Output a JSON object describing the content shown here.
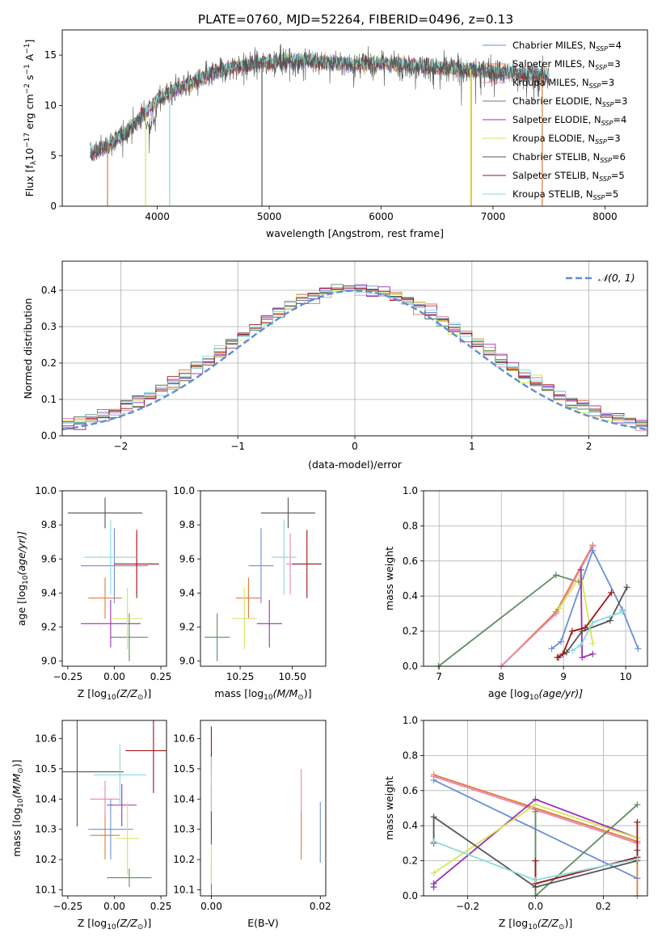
{
  "figure": {
    "title": "PLATE=0760, MJD=52264, FIBERID=0496, z=0.13"
  },
  "colors": {
    "cm": "#6a8fd8",
    "sm": "#e07b39",
    "km": "#e986b0",
    "ce": "#5e8c63",
    "se": "#9b30b5",
    "ke": "#d6e654",
    "cs": "#555555",
    "ss": "#a01416",
    "ks": "#89dadb",
    "normal": "#5b8fd6"
  },
  "chart_data": [
    {
      "id": "spectrum",
      "type": "line",
      "xlabel": "wavelength [Angstrom, rest frame]",
      "ylabel_main": "Flux [f",
      "ylabel_sub": "λ",
      "ylabel_rest": "10",
      "ylabel_exp1": "−17",
      "ylabel_mid": " erg cm",
      "ylabel_exp2": "−2",
      "ylabel_s": " s",
      "ylabel_exp3": "−1",
      "ylabel_end": " A",
      "ylabel_exp4": "−1",
      "ylabel_close": "]",
      "xlim": [
        3150,
        8380
      ],
      "ylim": [
        0,
        17.5
      ],
      "xticks": [
        4000,
        5000,
        6000,
        7000,
        8000
      ],
      "yticks": [
        0,
        5,
        10,
        15
      ],
      "continuum": [
        [
          3400,
          5.2
        ],
        [
          3550,
          6.0
        ],
        [
          3700,
          7.2
        ],
        [
          3850,
          8.8
        ],
        [
          4000,
          10.6
        ],
        [
          4150,
          11.6
        ],
        [
          4300,
          12.2
        ],
        [
          4500,
          13.2
        ],
        [
          4700,
          13.9
        ],
        [
          4900,
          14.2
        ],
        [
          5100,
          14.4
        ],
        [
          5300,
          14.5
        ],
        [
          5500,
          14.3
        ],
        [
          5800,
          14.1
        ],
        [
          6000,
          14.2
        ],
        [
          6300,
          14.0
        ],
        [
          6600,
          13.7
        ],
        [
          6900,
          13.5
        ],
        [
          7100,
          13.3
        ],
        [
          7300,
          13.1
        ],
        [
          7500,
          13.0
        ]
      ],
      "series": [
        {
          "key": "cm",
          "legend": "Chabrier MILES, N",
          "legend_sub": "SSP",
          "legend_val": "=4"
        },
        {
          "key": "sm",
          "legend": "Salpeter MILES, N",
          "legend_sub": "SSP",
          "legend_val": "=3"
        },
        {
          "key": "km",
          "legend": "Kroupa MILES, N",
          "legend_sub": "SSP",
          "legend_val": "=3"
        },
        {
          "key": "ce",
          "legend": "Chabrier ELODIE, N",
          "legend_sub": "SSP",
          "legend_val": "=3"
        },
        {
          "key": "se",
          "legend": "Salpeter ELODIE, N",
          "legend_sub": "SSP",
          "legend_val": "=4"
        },
        {
          "key": "ke",
          "legend": "Kroupa ELODIE, N",
          "legend_sub": "SSP",
          "legend_val": "=3"
        },
        {
          "key": "cs",
          "legend": "Chabrier STELIB, N",
          "legend_sub": "SSP",
          "legend_val": "=6"
        },
        {
          "key": "ss",
          "legend": "Salpeter STELIB, N",
          "legend_sub": "SSP",
          "legend_val": "=5"
        },
        {
          "key": "ks",
          "legend": "Kroupa STELIB, N",
          "legend_sub": "SSP",
          "legend_val": "=5"
        }
      ],
      "spikes": [
        {
          "key": "sm",
          "x": 3555,
          "y": 0
        },
        {
          "key": "ke",
          "x": 3895,
          "y": 0
        },
        {
          "key": "ks",
          "x": 4110,
          "y": 0
        },
        {
          "key": "cs",
          "x": 4935,
          "y": 0
        },
        {
          "key": "sm",
          "x": 6805,
          "y": 0
        },
        {
          "key": "ke",
          "x": 6800,
          "y": 0
        },
        {
          "key": "sm",
          "x": 7440,
          "y": 0
        }
      ]
    },
    {
      "id": "residuals",
      "type": "histogram",
      "xlabel": "(data-model)/error",
      "ylabel": "Normed distribution",
      "xlim": [
        -2.5,
        2.5
      ],
      "ylim": [
        0,
        0.48
      ],
      "xticks": [
        -2,
        -1,
        0,
        1,
        2
      ],
      "yticks": [
        0.0,
        0.1,
        0.2,
        0.3,
        0.4
      ],
      "xtick_labels": [
        "−2",
        "−1",
        "0",
        "1",
        "2"
      ],
      "legend": "𝒩(0, 1)",
      "bin_width": 0.1
    },
    {
      "id": "age_vs_Z",
      "type": "scatter",
      "xlabel": "Z [log",
      "xlabel_sub": "10",
      "xlabel_rest": "(Z/Z",
      "xlabel_sub2": "⊙",
      "xlabel_close": ")]",
      "ylabel": "age  [log",
      "ylabel_sub": "10",
      "ylabel_rest": "(age/yr)]",
      "xlim": [
        -0.28,
        0.28
      ],
      "ylim": [
        8.97,
        10.0
      ],
      "xticks": [
        -0.25,
        0.0,
        0.25
      ],
      "xtick_labels": [
        "−0.25",
        "0.00",
        "0.25"
      ],
      "yticks": [
        9.0,
        9.2,
        9.4,
        9.6,
        9.8,
        10.0
      ],
      "points": [
        {
          "key": "cm",
          "x": 0.0,
          "xerr": 0.18,
          "y": 9.56,
          "yerr": 0.22
        },
        {
          "key": "sm",
          "x": -0.05,
          "xerr": 0.09,
          "y": 9.37,
          "yerr": 0.12
        },
        {
          "key": "km",
          "x": 0.12,
          "xerr": 0.02,
          "y": 9.57,
          "yerr": 0.18
        },
        {
          "key": "ce",
          "x": 0.08,
          "xerr": 0.1,
          "y": 9.14,
          "yerr": 0.14
        },
        {
          "key": "se",
          "x": -0.02,
          "xerr": 0.16,
          "y": 9.22,
          "yerr": 0.14
        },
        {
          "key": "ke",
          "x": 0.07,
          "xerr": 0.08,
          "y": 9.25,
          "yerr": 0.18
        },
        {
          "key": "cs",
          "x": -0.05,
          "xerr": 0.2,
          "y": 9.87,
          "yerr": 0.09
        },
        {
          "key": "ss",
          "x": 0.12,
          "xerr": 0.12,
          "y": 9.57,
          "yerr": 0.2
        },
        {
          "key": "ks",
          "x": -0.02,
          "xerr": 0.14,
          "y": 9.61,
          "yerr": 0.22
        }
      ]
    },
    {
      "id": "age_vs_mass",
      "type": "scatter",
      "xlabel": "mass [log",
      "xlabel_sub": "10",
      "xlabel_rest": "(M/M",
      "xlabel_sub2": "⊙",
      "xlabel_close": ")]",
      "xlim": [
        10.06,
        10.66
      ],
      "ylim": [
        8.97,
        10.0
      ],
      "xticks": [
        10.25,
        10.5
      ],
      "xtick_labels": [
        "10.25",
        "10.50"
      ],
      "yticks": [
        9.0,
        9.2,
        9.4,
        9.6,
        9.8,
        10.0
      ],
      "points": [
        {
          "key": "cm",
          "x": 10.35,
          "xerr": 0.06,
          "y": 9.56,
          "yerr": 0.22
        },
        {
          "key": "sm",
          "x": 10.29,
          "xerr": 0.06,
          "y": 9.37,
          "yerr": 0.12
        },
        {
          "key": "km",
          "x": 10.49,
          "xerr": 0.02,
          "y": 9.57,
          "yerr": 0.18
        },
        {
          "key": "ce",
          "x": 10.14,
          "xerr": 0.06,
          "y": 9.14,
          "yerr": 0.14
        },
        {
          "key": "se",
          "x": 10.39,
          "xerr": 0.06,
          "y": 9.22,
          "yerr": 0.14
        },
        {
          "key": "ke",
          "x": 10.27,
          "xerr": 0.06,
          "y": 9.25,
          "yerr": 0.18
        },
        {
          "key": "cs",
          "x": 10.48,
          "xerr": 0.13,
          "y": 9.87,
          "yerr": 0.09
        },
        {
          "key": "ss",
          "x": 10.57,
          "xerr": 0.07,
          "y": 9.57,
          "yerr": 0.2
        },
        {
          "key": "ks",
          "x": 10.46,
          "xerr": 0.06,
          "y": 9.61,
          "yerr": 0.22
        }
      ]
    },
    {
      "id": "weight_vs_age",
      "type": "line",
      "xlabel": "age  [log",
      "xlabel_sub": "10",
      "xlabel_rest": "(age/yr)]",
      "ylabel": "mass weight",
      "xlim": [
        6.75,
        10.35
      ],
      "ylim": [
        0,
        1.0
      ],
      "xticks": [
        7,
        8,
        9,
        10
      ],
      "yticks": [
        0.0,
        0.2,
        0.4,
        0.6,
        0.8,
        1.0
      ],
      "series": [
        {
          "key": "ce",
          "x": [
            6.99,
            8.88,
            9.25
          ],
          "y": [
            0.0,
            0.52,
            0.48
          ]
        },
        {
          "key": "sm",
          "x": [
            8.0,
            8.88,
            9.47
          ],
          "y": [
            0.0,
            0.31,
            0.69
          ]
        },
        {
          "key": "km",
          "x": [
            8.0,
            8.88,
            9.47
          ],
          "y": [
            0.0,
            0.3,
            0.68
          ]
        },
        {
          "key": "cm",
          "x": [
            8.81,
            8.96,
            9.47,
            9.95,
            10.2
          ],
          "y": [
            0.1,
            0.14,
            0.66,
            0.32,
            0.1
          ]
        },
        {
          "key": "ke",
          "x": [
            8.93,
            9.28,
            9.47
          ],
          "y": [
            0.33,
            0.52,
            0.13
          ]
        },
        {
          "key": "se",
          "x": [
            9.28,
            9.3,
            9.47
          ],
          "y": [
            0.55,
            0.05,
            0.07
          ]
        },
        {
          "key": "cs",
          "x": [
            8.9,
            9.05,
            9.3,
            9.75,
            10.02
          ],
          "y": [
            0.05,
            0.08,
            0.2,
            0.26,
            0.45
          ]
        },
        {
          "key": "ss",
          "x": [
            8.92,
            8.99,
            9.14,
            9.35,
            9.77
          ],
          "y": [
            0.05,
            0.07,
            0.2,
            0.22,
            0.42
          ]
        },
        {
          "key": "ks",
          "x": [
            9.14,
            9.28,
            9.47,
            9.95
          ],
          "y": [
            0.09,
            0.12,
            0.25,
            0.31
          ]
        }
      ]
    },
    {
      "id": "mass_vs_Z",
      "type": "scatter",
      "xlabel": "Z [log",
      "xlabel_sub": "10",
      "xlabel_rest": "(Z/Z",
      "xlabel_sub2": "⊙",
      "xlabel_close": ")]",
      "ylabel": "mass [log",
      "ylabel_sub": "10",
      "ylabel_rest": "(M/M",
      "ylabel_sub2": "⊙",
      "ylabel_close": ")]",
      "xlim": [
        -0.28,
        0.28
      ],
      "ylim": [
        10.08,
        10.66
      ],
      "xticks": [
        -0.25,
        0.0,
        0.25
      ],
      "xtick_labels": [
        "−0.25",
        "0.00",
        "0.25"
      ],
      "yticks": [
        10.1,
        10.2,
        10.3,
        10.4,
        10.5,
        10.6
      ],
      "points": [
        {
          "key": "cm",
          "x": -0.02,
          "xerr": 0.12,
          "y": 10.3,
          "yerr": 0.1
        },
        {
          "key": "sm",
          "x": -0.05,
          "xerr": 0.08,
          "y": 10.28,
          "yerr": 0.08
        },
        {
          "key": "km",
          "x": -0.05,
          "xerr": 0.08,
          "y": 10.4,
          "yerr": 0.06
        },
        {
          "key": "ce",
          "x": 0.08,
          "xerr": 0.12,
          "y": 10.14,
          "yerr": 0.03
        },
        {
          "key": "se",
          "x": 0.04,
          "xerr": 0.08,
          "y": 10.38,
          "yerr": 0.07
        },
        {
          "key": "ke",
          "x": 0.07,
          "xerr": 0.06,
          "y": 10.27,
          "yerr": 0.12
        },
        {
          "key": "cs",
          "x": -0.2,
          "xerr": 0.25,
          "y": 10.49,
          "yerr": 0.18
        },
        {
          "key": "ss",
          "x": 0.21,
          "xerr": 0.15,
          "y": 10.56,
          "yerr": 0.14
        },
        {
          "key": "ks",
          "x": 0.03,
          "xerr": 0.14,
          "y": 10.48,
          "yerr": 0.1
        }
      ]
    },
    {
      "id": "mass_vs_ebv",
      "type": "scatter",
      "xlabel": "E(B-V)",
      "xlim": [
        -0.002,
        0.021
      ],
      "ylim": [
        10.08,
        10.66
      ],
      "xticks": [
        0.0,
        0.02
      ],
      "xtick_labels": [
        "0.00",
        "0.02"
      ],
      "yticks": [
        10.1,
        10.2,
        10.3,
        10.4,
        10.5,
        10.6
      ],
      "points": [
        {
          "key": "cm",
          "x": 0.02,
          "xerr": 0,
          "y": 10.29,
          "yerr": 0.1
        },
        {
          "key": "sm",
          "x": 0.0165,
          "xerr": 0,
          "y": 10.28,
          "yerr": 0.08
        },
        {
          "key": "km",
          "x": 0.0165,
          "xerr": 0,
          "y": 10.43,
          "yerr": 0.07
        },
        {
          "key": "ce",
          "x": 0.0,
          "xerr": 0,
          "y": 10.14,
          "yerr": 0.06
        },
        {
          "key": "se",
          "x": 0.0,
          "xerr": 0,
          "y": 10.38,
          "yerr": 0.06
        },
        {
          "key": "ke",
          "x": 0.0,
          "xerr": 0,
          "y": 10.24,
          "yerr": 0.12
        },
        {
          "key": "cs",
          "x": 0.0,
          "xerr": 0,
          "y": 10.4,
          "yerr": 0.15
        },
        {
          "key": "ss",
          "x": 0.0,
          "xerr": 0,
          "y": 10.56,
          "yerr": 0.08
        },
        {
          "key": "ks",
          "x": 0.0,
          "xerr": 0,
          "y": 10.45,
          "yerr": 0.09
        }
      ]
    },
    {
      "id": "weight_vs_Z",
      "type": "line",
      "xlabel": "Z [log",
      "xlabel_sub": "10",
      "xlabel_rest": "(Z/Z",
      "xlabel_sub2": "⊙",
      "xlabel_close": ")]",
      "ylabel": "mass weight",
      "xlim": [
        -0.33,
        0.33
      ],
      "ylim": [
        0,
        1.0
      ],
      "xticks": [
        -0.2,
        0.0,
        0.2
      ],
      "xtick_labels": [
        "−0.2",
        "0.0",
        "0.2"
      ],
      "yticks": [
        0.0,
        0.2,
        0.4,
        0.6,
        0.8,
        1.0
      ],
      "series": [
        {
          "key": "cm",
          "x": [
            -0.3,
            0.3,
            0.3
          ],
          "y": [
            0.66,
            0.1,
            0.1
          ]
        },
        {
          "key": "sm",
          "x": [
            -0.3,
            0.3,
            0.3
          ],
          "y": [
            0.69,
            0.31,
            0.0
          ]
        },
        {
          "key": "km",
          "x": [
            -0.3,
            0.3
          ],
          "y": [
            0.68,
            0.3
          ]
        },
        {
          "key": "ce",
          "x": [
            0.0,
            0.0,
            0.3
          ],
          "y": [
            0.48,
            0.0,
            0.52
          ]
        },
        {
          "key": "se",
          "x": [
            -0.3,
            -0.3,
            0.0,
            0.3
          ],
          "y": [
            0.05,
            0.07,
            0.55,
            0.33
          ]
        },
        {
          "key": "ke",
          "x": [
            -0.3,
            0.0,
            0.3
          ],
          "y": [
            0.13,
            0.52,
            0.33
          ]
        },
        {
          "key": "cs",
          "x": [
            -0.3,
            -0.3,
            0.0,
            0.3,
            0.3
          ],
          "y": [
            0.3,
            0.45,
            0.05,
            0.2,
            0.26
          ]
        },
        {
          "key": "ss",
          "x": [
            0.0,
            0.0,
            0.3,
            0.3
          ],
          "y": [
            0.2,
            0.07,
            0.22,
            0.42
          ]
        },
        {
          "key": "ks",
          "x": [
            -0.3,
            0.0,
            0.3
          ],
          "y": [
            0.31,
            0.09,
            0.21
          ]
        }
      ]
    }
  ]
}
